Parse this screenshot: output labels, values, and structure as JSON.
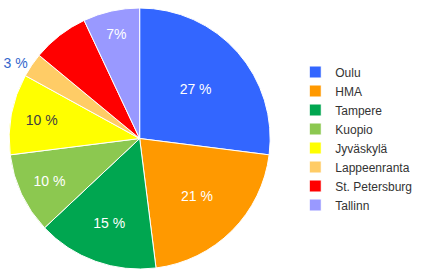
{
  "chart_data": {
    "type": "pie",
    "categories": [
      "Oulu",
      "HMA",
      "Tampere",
      "Kuopio",
      "Jyväskylä",
      "Lappeenranta",
      "St. Petersburg",
      "Tallinn"
    ],
    "values": [
      27,
      21,
      15,
      10,
      10,
      3,
      7,
      7
    ],
    "value_labels": [
      "27 %",
      "21 %",
      "15 %",
      "10 %",
      "10 %",
      "3 %",
      null,
      "7%"
    ],
    "colors": [
      "#3366ff",
      "#ff9900",
      "#00a650",
      "#8cc850",
      "#ffff00",
      "#ffcc66",
      "#ff0000",
      "#9999ff"
    ],
    "data_labels": true,
    "legend": "right"
  }
}
